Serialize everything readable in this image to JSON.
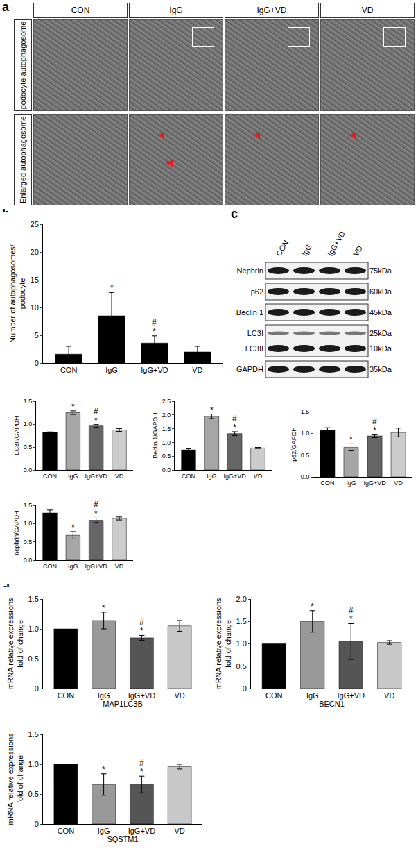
{
  "panels": [
    "a",
    "b",
    "c",
    "d"
  ],
  "tem": {
    "columns": [
      "CON",
      "IgG",
      "IgG+VD",
      "VD"
    ],
    "rows": [
      "podocyte autophagosome",
      "Enlarged autophagosome"
    ]
  },
  "blot": {
    "lanes": [
      "CON",
      "IgG",
      "IgG+VD",
      "VD"
    ],
    "rows": [
      {
        "label": "Nephrin",
        "size": "75kDa"
      },
      {
        "label": "p62",
        "size": "60kDa"
      },
      {
        "label": "Beclin 1",
        "size": "45kDa"
      },
      {
        "label": "LC3I",
        "size": "25kDa"
      },
      {
        "label": "LC3II",
        "size": "10kDa"
      },
      {
        "label": "GAPDH",
        "size": "35kDa"
      }
    ]
  },
  "chart_data": [
    {
      "type": "bar",
      "categories": [
        "CON",
        "IgG",
        "IgG+VD",
        "VD"
      ],
      "values": [
        1.6,
        8.5,
        3.6,
        2.0
      ],
      "errors": [
        1.4,
        4.2,
        1.3,
        1.0
      ],
      "colors": [
        "#000000",
        "#000000",
        "#000000",
        "#000000"
      ],
      "y_label": "Number of autophagosomes/\npodocyte",
      "ylim": [
        0,
        25
      ],
      "yticks": [
        0,
        5,
        10,
        15,
        20,
        25
      ],
      "annotations": [
        {
          "category": "IgG",
          "text": "*"
        },
        {
          "category": "IgG+VD",
          "text": "#"
        },
        {
          "category": "IgG+VD",
          "text": "*"
        }
      ]
    },
    {
      "type": "bar",
      "categories": [
        "CON",
        "IgG",
        "IgG+VD",
        "VD"
      ],
      "values": [
        0.82,
        1.25,
        0.96,
        0.87
      ],
      "errors": [
        0.01,
        0.04,
        0.03,
        0.03
      ],
      "colors": [
        "#000000",
        "#a6a6a6",
        "#666666",
        "#cccccc"
      ],
      "y_label": "LC3II/GAPDH",
      "ylim": [
        0,
        1.5
      ],
      "yticks": [
        {
          "value": 0,
          "label": "0.0"
        },
        0.5,
        {
          "value": 1,
          "label": "1.0"
        },
        1.5
      ],
      "annotations": [
        {
          "category": "IgG",
          "text": "*"
        },
        {
          "category": "IgG+VD",
          "text": "#"
        },
        {
          "category": "IgG+VD",
          "text": "*"
        }
      ]
    },
    {
      "type": "bar",
      "categories": [
        "CON",
        "IgG",
        "IgG+VD",
        "VD"
      ],
      "values": [
        0.73,
        1.95,
        1.32,
        0.8
      ],
      "errors": [
        0.04,
        0.08,
        0.07,
        0.02
      ],
      "colors": [
        "#000000",
        "#a6a6a6",
        "#666666",
        "#cccccc"
      ],
      "y_label": "Beclin 1/GAPDH",
      "ylim": [
        0,
        2.5
      ],
      "yticks": [
        {
          "value": 0,
          "label": "0.0"
        },
        0.5,
        {
          "value": 1,
          "label": "1.0"
        },
        1.5,
        {
          "value": 2,
          "label": "2.0"
        },
        2.5
      ],
      "annotations": [
        {
          "category": "IgG",
          "text": "*"
        },
        {
          "category": "IgG+VD",
          "text": "#"
        },
        {
          "category": "IgG+VD",
          "text": "*"
        }
      ]
    },
    {
      "type": "bar",
      "categories": [
        "CON",
        "IgG",
        "IgG+VD",
        "VD"
      ],
      "values": [
        1.07,
        0.68,
        0.94,
        1.02
      ],
      "errors": [
        0.06,
        0.08,
        0.04,
        0.1
      ],
      "colors": [
        "#000000",
        "#a6a6a6",
        "#666666",
        "#cccccc"
      ],
      "y_label": "p62/GAPDH",
      "ylim": [
        0,
        1.5
      ],
      "yticks": [
        {
          "value": 0,
          "label": "0.0"
        },
        0.5,
        {
          "value": 1,
          "label": "1.0"
        },
        1.5
      ],
      "annotations": [
        {
          "category": "IgG",
          "text": "*"
        },
        {
          "category": "IgG+VD",
          "text": "#"
        },
        {
          "category": "IgG+VD",
          "text": "*"
        }
      ]
    },
    {
      "type": "bar",
      "categories": [
        "CON",
        "IgG",
        "IgG+VD",
        "VD"
      ],
      "values": [
        1.29,
        0.68,
        1.09,
        1.14
      ],
      "errors": [
        0.08,
        0.1,
        0.06,
        0.04
      ],
      "colors": [
        "#000000",
        "#a6a6a6",
        "#666666",
        "#cccccc"
      ],
      "y_label": "nephrin/GAPDH",
      "ylim": [
        0,
        1.5
      ],
      "yticks": [
        {
          "value": 0,
          "label": "0.0"
        },
        0.5,
        {
          "value": 1,
          "label": "1.0"
        },
        1.5
      ],
      "annotations": [
        {
          "category": "IgG",
          "text": "*"
        },
        {
          "category": "IgG+VD",
          "text": "#"
        },
        {
          "category": "IgG+VD",
          "text": "*"
        }
      ]
    },
    {
      "type": "bar",
      "categories": [
        "CON",
        "IgG",
        "IgG+VD",
        "VD"
      ],
      "values": [
        1.0,
        1.14,
        0.85,
        1.05
      ],
      "errors": [
        null,
        0.14,
        0.04,
        0.09
      ],
      "colors": [
        "#000000",
        "#999999",
        "#555555",
        "#c8c8c8"
      ],
      "y_label": "mRNA relative expressions\nfold of change",
      "x_label": "MAP1LC3B",
      "ylim": [
        0,
        1.5
      ],
      "yticks": [
        0,
        0.5,
        {
          "value": 1,
          "label": "1.0"
        },
        1.5
      ],
      "annotations": [
        {
          "category": "IgG",
          "text": "*"
        },
        {
          "category": "IgG+VD",
          "text": "#"
        },
        {
          "category": "IgG+VD",
          "text": "*"
        }
      ]
    },
    {
      "type": "bar",
      "categories": [
        "CON",
        "IgG",
        "IgG+VD",
        "VD"
      ],
      "values": [
        1.0,
        1.5,
        1.05,
        1.03
      ],
      "errors": [
        null,
        0.24,
        0.4,
        0.04
      ],
      "colors": [
        "#000000",
        "#999999",
        "#555555",
        "#c8c8c8"
      ],
      "y_label": "mRNA relative expressions\nfold of change",
      "x_label": "BECN1",
      "ylim": [
        0,
        2
      ],
      "yticks": [
        0,
        0.5,
        {
          "value": 1,
          "label": "1.0"
        },
        1.5,
        {
          "value": 2,
          "label": "2.0"
        }
      ],
      "annotations": [
        {
          "category": "IgG",
          "text": "*"
        },
        {
          "category": "IgG+VD",
          "text": "#"
        },
        {
          "category": "IgG+VD",
          "text": "*"
        }
      ]
    },
    {
      "type": "bar",
      "categories": [
        "CON",
        "IgG",
        "IgG+VD",
        "VD"
      ],
      "values": [
        1.0,
        0.66,
        0.66,
        0.96
      ],
      "errors": [
        null,
        0.18,
        0.14,
        0.04
      ],
      "colors": [
        "#000000",
        "#999999",
        "#555555",
        "#c8c8c8"
      ],
      "y_label": "mRNA relative expressions\nfold of change",
      "x_label": "SQSTM1",
      "ylim": [
        0,
        1.5
      ],
      "yticks": [
        0,
        0.5,
        {
          "value": 1,
          "label": "1.0"
        },
        1.5
      ],
      "annotations": [
        {
          "category": "IgG",
          "text": "*"
        },
        {
          "category": "IgG+VD",
          "text": "#"
        },
        {
          "category": "IgG+VD",
          "text": "*"
        }
      ]
    }
  ]
}
